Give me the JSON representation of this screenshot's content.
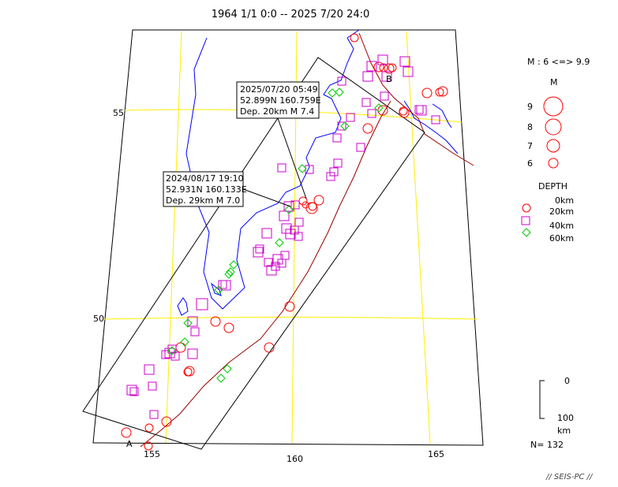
{
  "title": "1964 1/1 0:0 -- 2025 7/20 24:0",
  "lat_labels": [
    "55",
    "50"
  ],
  "lon_labels": [
    "155",
    "160",
    "165"
  ],
  "section_labels": {
    "a": "A",
    "b": "B"
  },
  "callouts": [
    {
      "lines": [
        "2025/07/20 05:49",
        "52.899N  160.759E",
        "Dep. 20km    M 7.4"
      ]
    },
    {
      "lines": [
        "2024/08/17 19:10",
        "52.931N  160.133E",
        "Dep. 29km    M 7.0"
      ]
    }
  ],
  "legend": {
    "mag_range": "M : 6 <=> 9.9",
    "mag_title": "M",
    "mags": [
      "9",
      "8",
      "7",
      "6"
    ],
    "depth_title": "DEPTH",
    "depths": [
      "0km",
      "20km",
      "40km",
      "60km"
    ]
  },
  "scale": {
    "top": "0",
    "bottom": "100",
    "unit": "km"
  },
  "count": "N= 132",
  "credit": "// SEIS-PC //",
  "colors": {
    "coast": "#0000ff",
    "grid": "#ffff00",
    "shallow": "#ff0000",
    "mid": "#cc00cc",
    "deep": "#00cc00",
    "trench": "#990000",
    "frame": "#000000"
  }
}
